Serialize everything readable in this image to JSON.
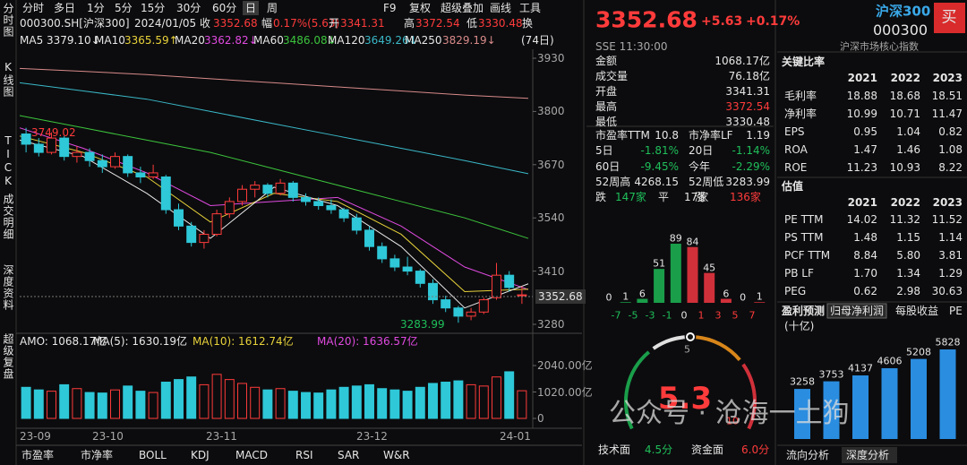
{
  "toolbar": {
    "tabs": [
      "分时",
      "多日",
      "1分",
      "5分",
      "15分",
      "30分",
      "60分",
      "日",
      "周"
    ],
    "tools": [
      "F9",
      "复权",
      "超级叠加",
      "画线",
      "工具"
    ]
  },
  "sidebar": [
    "分时图",
    "K线图",
    "TICK",
    "成交明细",
    "深度资料",
    "超级复盘"
  ],
  "info": {
    "code": "000300.SH[沪深300]",
    "date": "2024/01/05",
    "close_label": "收",
    "close": "3352.68",
    "range_label": "幅",
    "range": "0.17%(5.63)",
    "open_label": "开",
    "open": "3341.31",
    "high_label": "高",
    "high": "3372.54",
    "low_label": "低",
    "low": "3330.48",
    "turnover_label": "换"
  },
  "ma_legend": [
    {
      "label": "MA5",
      "value": "3379.10↓",
      "color": "#e8e8e8"
    },
    {
      "label": "MA10",
      "value": "3365.59↑",
      "color": "#e8d23a"
    },
    {
      "label": "MA20",
      "value": "3362.82↓",
      "color": "#e04ae0"
    },
    {
      "label": "MA60",
      "value": "3486.08↓",
      "color": "#3cc43c"
    },
    {
      "label": "MA120",
      "value": "3649.26↓",
      "color": "#3ab8c8"
    },
    {
      "label": "MA250",
      "value": "3829.19↓",
      "color": "#d88a8a"
    }
  ],
  "period": "(74日)",
  "kline": {
    "ylim": [
      3280,
      3930
    ],
    "yticks": [
      3930,
      3800,
      3670,
      3540,
      3410,
      3280
    ],
    "last_price": "3352.68",
    "high_note": "3749.02",
    "low_note": "3283.99",
    "candles": [
      [
        3745,
        3760,
        3700,
        3720
      ],
      [
        3720,
        3735,
        3690,
        3700
      ],
      [
        3700,
        3749,
        3695,
        3735
      ],
      [
        3735,
        3740,
        3680,
        3690
      ],
      [
        3690,
        3715,
        3675,
        3700
      ],
      [
        3700,
        3710,
        3665,
        3680
      ],
      [
        3680,
        3695,
        3650,
        3665
      ],
      [
        3665,
        3700,
        3660,
        3690
      ],
      [
        3690,
        3695,
        3640,
        3650
      ],
      [
        3650,
        3665,
        3625,
        3640
      ],
      [
        3640,
        3670,
        3635,
        3650
      ],
      [
        3640,
        3645,
        3550,
        3560
      ],
      [
        3560,
        3575,
        3510,
        3520
      ],
      [
        3520,
        3530,
        3470,
        3480
      ],
      [
        3480,
        3510,
        3465,
        3500
      ],
      [
        3500,
        3560,
        3495,
        3550
      ],
      [
        3550,
        3590,
        3540,
        3580
      ],
      [
        3580,
        3620,
        3570,
        3610
      ],
      [
        3610,
        3630,
        3590,
        3620
      ],
      [
        3620,
        3625,
        3590,
        3600
      ],
      [
        3600,
        3635,
        3595,
        3625
      ],
      [
        3625,
        3630,
        3580,
        3590
      ],
      [
        3590,
        3600,
        3570,
        3580
      ],
      [
        3580,
        3590,
        3560,
        3570
      ],
      [
        3570,
        3585,
        3550,
        3560
      ],
      [
        3560,
        3565,
        3530,
        3540
      ],
      [
        3540,
        3550,
        3500,
        3510
      ],
      [
        3510,
        3520,
        3460,
        3470
      ],
      [
        3470,
        3480,
        3430,
        3440
      ],
      [
        3440,
        3450,
        3410,
        3420
      ],
      [
        3420,
        3445,
        3400,
        3410
      ],
      [
        3410,
        3415,
        3370,
        3380
      ],
      [
        3380,
        3390,
        3330,
        3340
      ],
      [
        3340,
        3350,
        3310,
        3320
      ],
      [
        3320,
        3325,
        3284,
        3300
      ],
      [
        3300,
        3320,
        3290,
        3310
      ],
      [
        3310,
        3345,
        3305,
        3340
      ],
      [
        3345,
        3430,
        3340,
        3400
      ],
      [
        3400,
        3410,
        3360,
        3370
      ],
      [
        3350,
        3373,
        3330,
        3352
      ]
    ],
    "ma_lines": [
      {
        "color": "#d88a8a",
        "values": [
          3905,
          3898,
          3890,
          3880,
          3870,
          3860,
          3850,
          3840,
          3832
        ]
      },
      {
        "color": "#3ab8c8",
        "values": [
          3870,
          3850,
          3830,
          3800,
          3770,
          3740,
          3710,
          3680,
          3648
        ]
      },
      {
        "color": "#3cc43c",
        "values": [
          3790,
          3760,
          3730,
          3700,
          3660,
          3620,
          3580,
          3540,
          3490
        ]
      },
      {
        "color": "#e04ae0",
        "values": [
          3760,
          3710,
          3650,
          3570,
          3580,
          3590,
          3520,
          3420,
          3365
        ]
      },
      {
        "color": "#e8d23a",
        "values": [
          3740,
          3700,
          3640,
          3530,
          3600,
          3580,
          3500,
          3360,
          3366
        ]
      },
      {
        "color": "#e8e8e8",
        "values": [
          3730,
          3690,
          3600,
          3490,
          3615,
          3570,
          3470,
          3320,
          3379
        ]
      }
    ]
  },
  "volume": {
    "legend": [
      {
        "text": "AMO: 1068.17亿",
        "color": "#e8e8e8"
      },
      {
        "text": "MA(5): 1630.19亿",
        "color": "#e8e8e8"
      },
      {
        "text": "MA(10): 1612.74亿",
        "color": "#e8d23a"
      },
      {
        "text": "MA(20): 1636.57亿",
        "color": "#e04ae0"
      }
    ],
    "ylim": [
      0,
      2040
    ],
    "yticks": [
      {
        "value": 2040,
        "label": "2040.00亿"
      },
      {
        "value": 1020,
        "label": "1020.00亿"
      },
      0
    ],
    "values": [
      1200,
      1100,
      1050,
      1300,
      1150,
      1000,
      980,
      1100,
      1250,
      1050,
      1000,
      1400,
      1500,
      1600,
      1300,
      1700,
      1500,
      1350,
      1200,
      1100,
      1150,
      1050,
      1000,
      980,
      1100,
      1200,
      1250,
      1300,
      1150,
      1100,
      1050,
      1200,
      1350,
      1400,
      1450,
      1300,
      1250,
      1600,
      1800,
      1068
    ]
  },
  "dates": [
    "23-09",
    "23-10",
    "23-11",
    "23-12",
    "24-01"
  ],
  "indicator_tabs": [
    "市盈率",
    "市净率",
    "BOLL",
    "KDJ",
    "MACD",
    "RSI",
    "SAR",
    "W&R"
  ],
  "quote": {
    "price": "3352.68",
    "change": "+5.63",
    "pct": "+0.17%",
    "buy": "买",
    "time": "SSE 11:30:00",
    "rows": [
      [
        "金额",
        "1068.17亿"
      ],
      [
        "成交量",
        "76.18亿"
      ],
      [
        "开盘",
        "3341.31"
      ],
      [
        "最高",
        "3372.54"
      ],
      [
        "最低",
        "3330.48"
      ]
    ],
    "pairs": [
      [
        "市盈率TTM",
        "10.8",
        "市净率LF",
        "1.19"
      ],
      [
        "5日",
        "-1.81%",
        "20日",
        "-1.14%"
      ],
      [
        "60日",
        "-9.45%",
        "今年",
        "-2.29%"
      ],
      [
        "52周高",
        "4268.15",
        "52周低",
        "3283.99"
      ]
    ],
    "breadth": [
      "跌",
      "147家",
      "平",
      "17家",
      "涨",
      "136家"
    ]
  },
  "distribution": {
    "counts": [
      0,
      1,
      6,
      51,
      89,
      84,
      45,
      6,
      0,
      1
    ],
    "axis": [
      "-7",
      "-5",
      "-3",
      "-1",
      "0",
      "1",
      "3",
      "5",
      "7"
    ]
  },
  "gauge": {
    "score": "5.3",
    "mid": "5",
    "max": "10",
    "tech_label": "技术面",
    "tech": "4.5分",
    "fund_label": "资金面",
    "fund": "6.0分"
  },
  "watermark": "公众号 · 沧海一土狗",
  "index": {
    "name": "沪深300",
    "code": "000300",
    "desc": "沪深市场核心指数"
  },
  "ratios": {
    "title": "关键比率",
    "years": [
      "2021",
      "2022",
      "2023"
    ],
    "rows": [
      [
        "毛利率",
        "18.88",
        "18.68",
        "18.51"
      ],
      [
        "净利率",
        "10.99",
        "10.71",
        "11.47"
      ],
      [
        "EPS",
        "0.95",
        "1.04",
        "0.82"
      ],
      [
        "ROA",
        "1.47",
        "1.46",
        "1.08"
      ],
      [
        "ROE",
        "11.23",
        "10.93",
        "8.22"
      ]
    ]
  },
  "valuation": {
    "title": "估值",
    "years": [
      "2021",
      "2022",
      "2023"
    ],
    "rows": [
      [
        "PE TTM",
        "14.02",
        "11.32",
        "11.52"
      ],
      [
        "PS TTM",
        "1.48",
        "1.15",
        "1.14"
      ],
      [
        "PCF TTM",
        "8.84",
        "5.80",
        "3.81"
      ],
      [
        "PB LF",
        "1.70",
        "1.34",
        "1.29"
      ],
      [
        "PEG",
        "0.62",
        "2.98",
        "30.63"
      ]
    ]
  },
  "forecast": {
    "tabs": [
      "盈利预测",
      "归母净利润",
      "每股收益",
      "PE"
    ],
    "unit": "(十亿)",
    "values": [
      3258,
      3753,
      4137,
      4606,
      5208,
      5828
    ]
  },
  "bottom_tabs": [
    "流向分析",
    "深度分析"
  ]
}
